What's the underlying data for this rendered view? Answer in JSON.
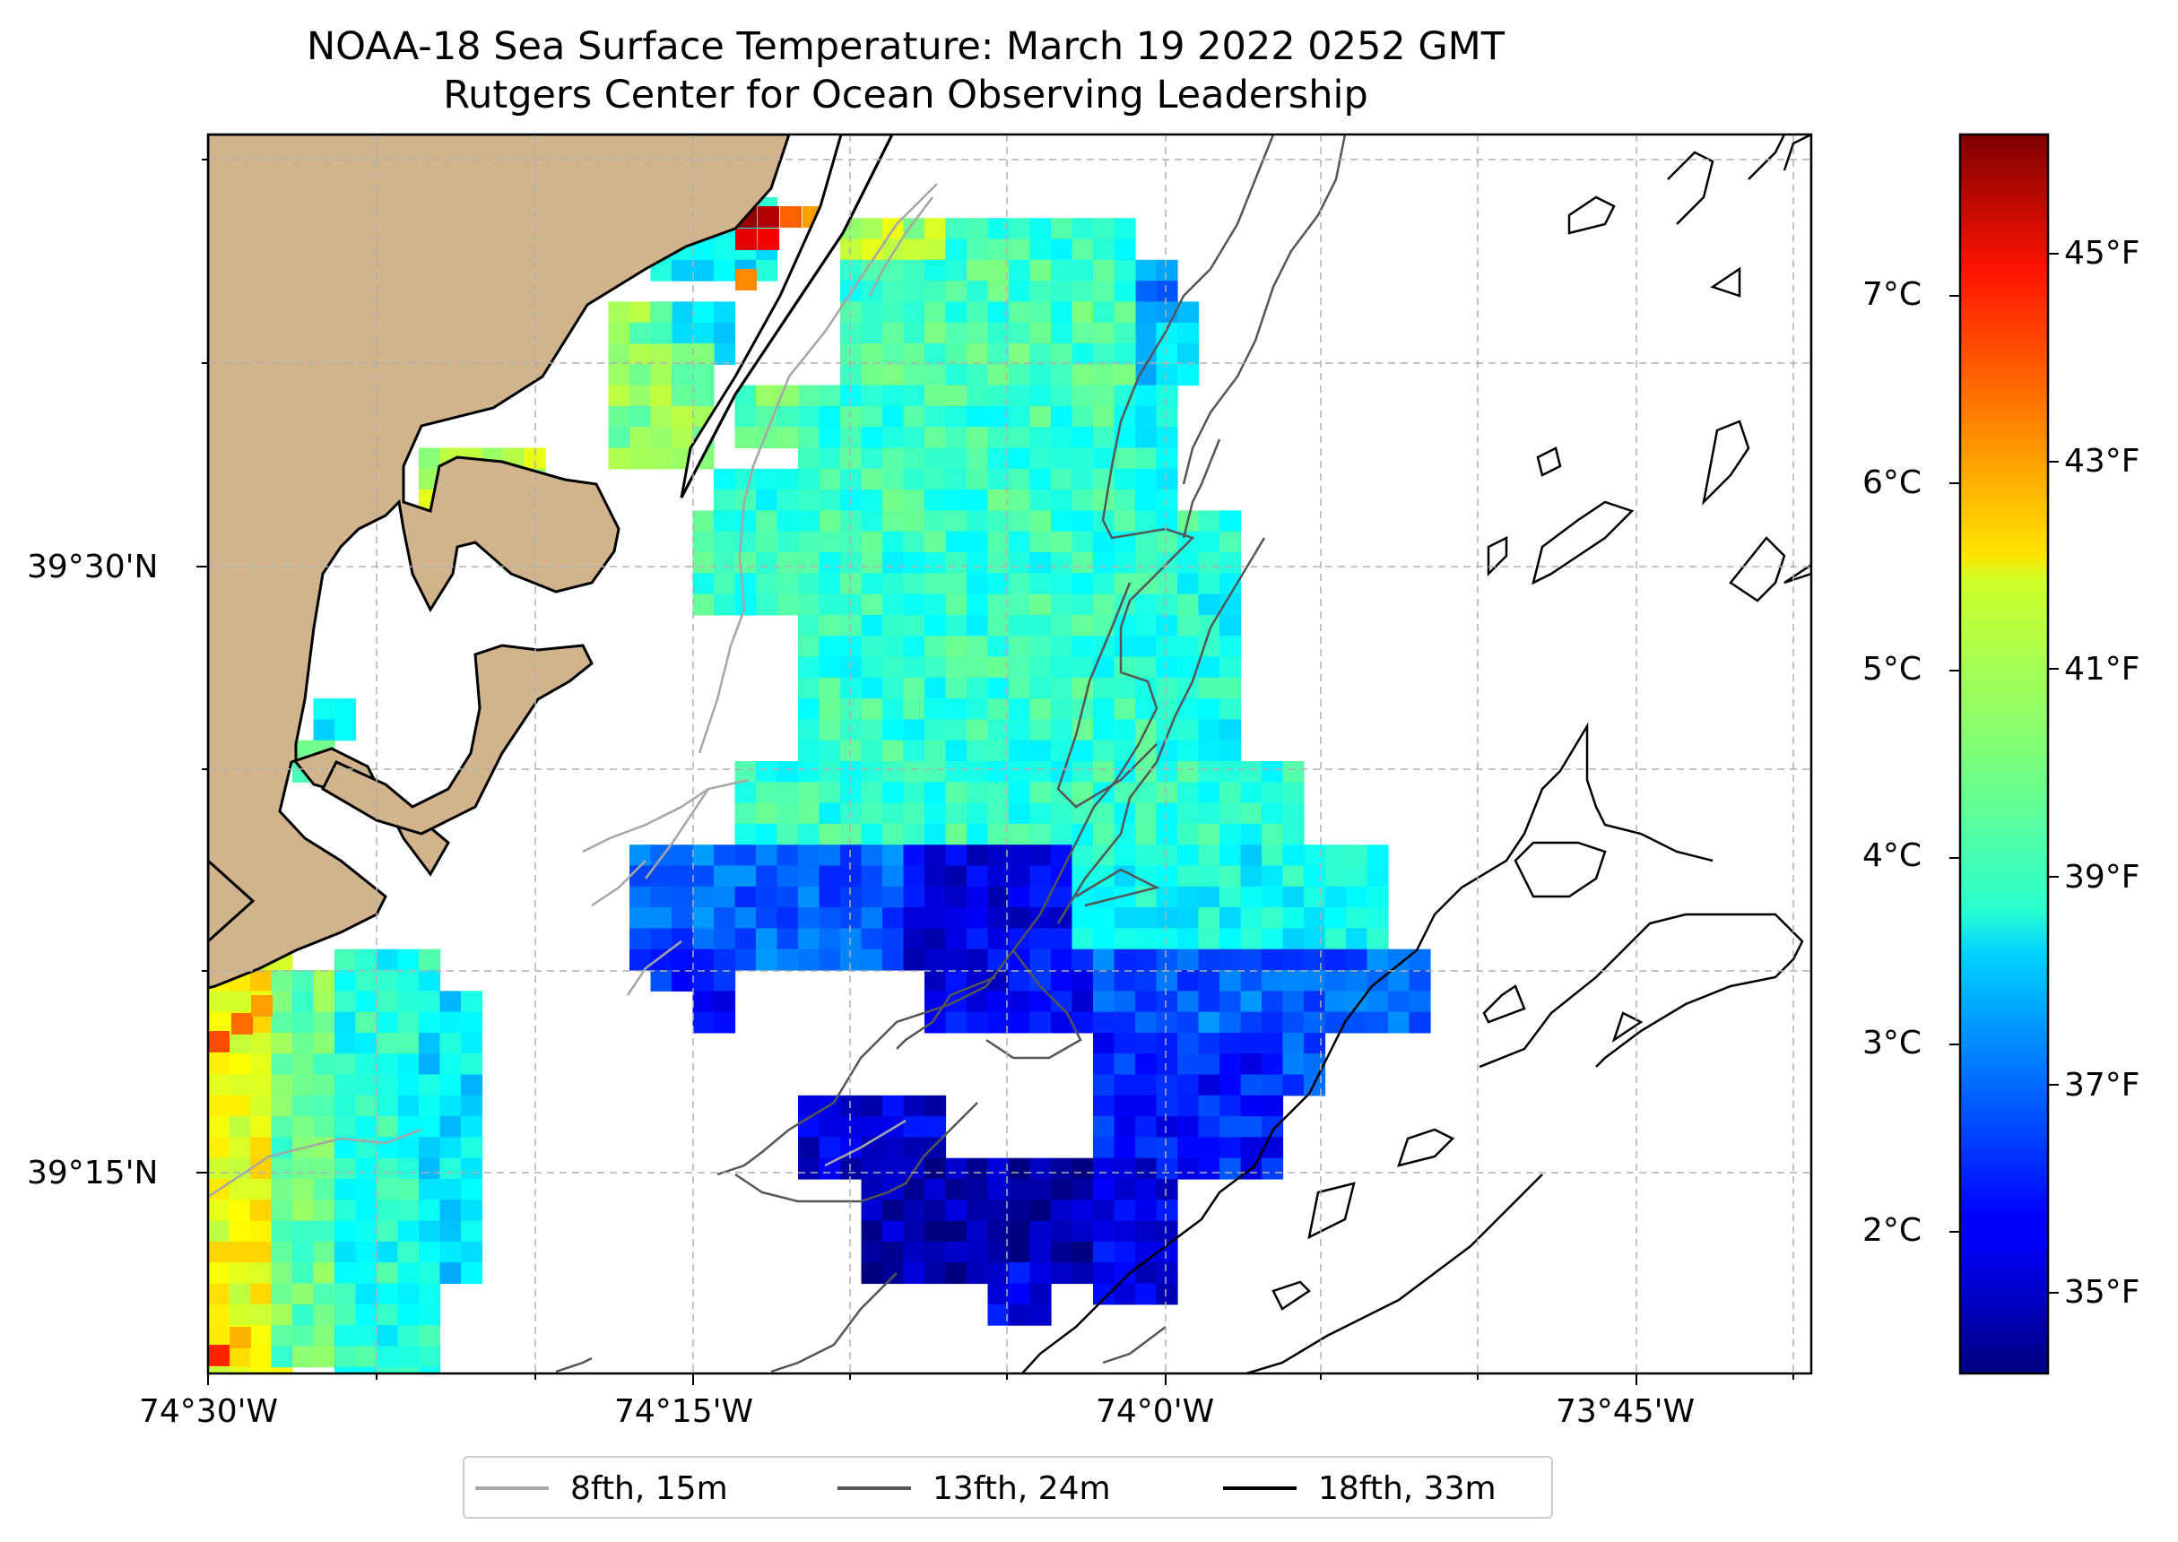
{
  "title": "NOAA-18 Sea Surface Temperature: March 19 2022 0252 GMT",
  "subtitle": "Rutgers Center for Ocean Observing Leadership",
  "x_ticks": [
    "74°30'W",
    "74°15'W",
    "74°0'W",
    "73°45'W"
  ],
  "y_ticks": [
    "39°30'N",
    "39°15'N"
  ],
  "colorbar": {
    "celsius_ticks": [
      "7°C",
      "6°C",
      "5°C",
      "4°C",
      "3°C",
      "2°C"
    ],
    "fahrenheit_ticks": [
      "45°F",
      "43°F",
      "41°F",
      "39°F",
      "37°F",
      "35°F"
    ],
    "min_c": 1.3,
    "max_c": 7.8,
    "colormap": "jet"
  },
  "legend": [
    {
      "label": "8fth, 15m",
      "color": "#a6a6a6"
    },
    {
      "label": "13fth, 24m",
      "color": "#555555"
    },
    {
      "label": "18fth, 33m",
      "color": "#000000"
    }
  ],
  "colors": {
    "land": "#d2b48c",
    "grid": "#b0b0b0"
  }
}
